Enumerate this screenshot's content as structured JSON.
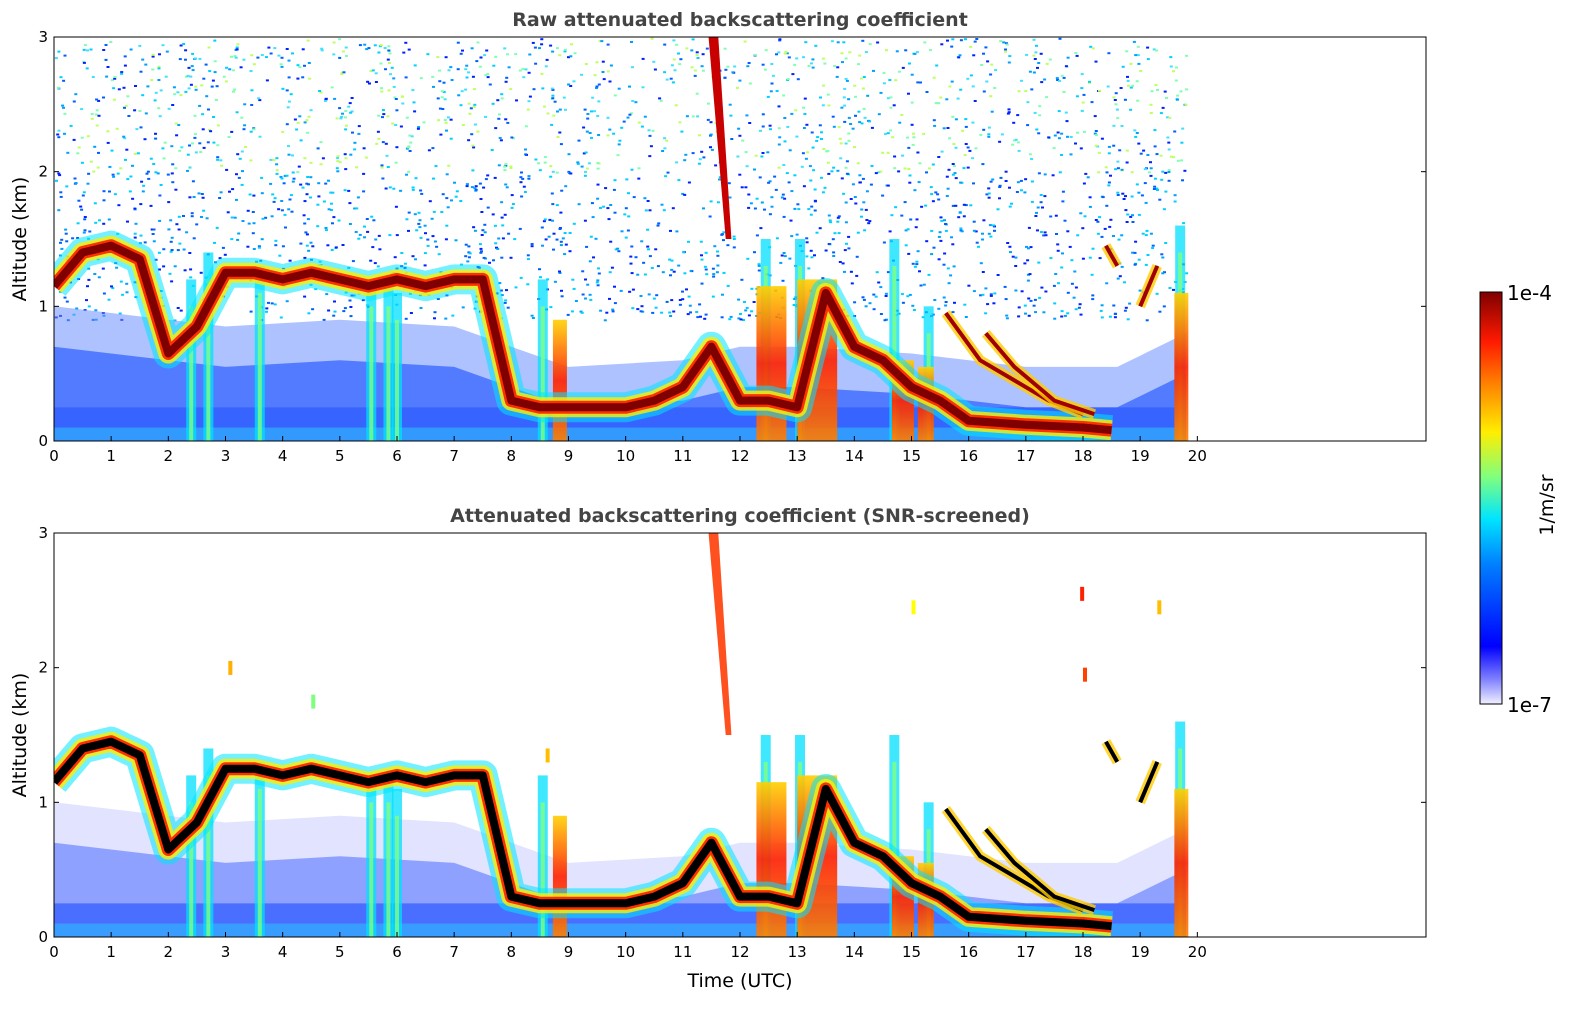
{
  "chart_data": [
    {
      "type": "heatmap",
      "title": "Raw attenuated backscattering coefficient",
      "xlabel": "",
      "ylabel": "Altitude (km)",
      "xlim": [
        0,
        24
      ],
      "ylim": [
        0,
        3
      ],
      "x_ticks": [
        "0",
        "1",
        "2",
        "3",
        "4",
        "5",
        "6",
        "7",
        "8",
        "9",
        "10",
        "11",
        "12",
        "13",
        "14",
        "15",
        "16",
        "17",
        "18",
        "19",
        "20"
      ],
      "y_ticks": [
        "0",
        "1",
        "2",
        "3"
      ],
      "data_end_time": 19.8,
      "cloud_layer_altitude_km": [
        [
          0,
          1.15
        ],
        [
          0.5,
          1.4
        ],
        [
          1,
          1.45
        ],
        [
          1.5,
          1.35
        ],
        [
          2,
          0.65
        ],
        [
          2.5,
          0.85
        ],
        [
          3,
          1.25
        ],
        [
          3.5,
          1.25
        ],
        [
          4,
          1.2
        ],
        [
          4.5,
          1.25
        ],
        [
          5,
          1.2
        ],
        [
          5.5,
          1.15
        ],
        [
          6,
          1.2
        ],
        [
          6.5,
          1.15
        ],
        [
          7,
          1.2
        ],
        [
          7.5,
          1.2
        ],
        [
          8,
          0.3
        ],
        [
          8.5,
          0.25
        ],
        [
          9,
          0.25
        ],
        [
          10,
          0.25
        ],
        [
          10.5,
          0.3
        ],
        [
          11,
          0.4
        ],
        [
          11.5,
          0.7
        ],
        [
          12,
          0.3
        ],
        [
          12.5,
          0.3
        ],
        [
          13,
          0.25
        ],
        [
          13.5,
          1.1
        ],
        [
          14,
          0.7
        ],
        [
          14.5,
          0.6
        ],
        [
          15,
          0.4
        ],
        [
          15.5,
          0.3
        ],
        [
          16,
          0.15
        ],
        [
          17,
          0.12
        ],
        [
          18,
          0.1
        ],
        [
          18.5,
          0.08
        ]
      ],
      "colorbar": "jet"
    },
    {
      "type": "heatmap",
      "title": "Attenuated backscattering coefficient (SNR-screened)",
      "xlabel": "Time (UTC)",
      "ylabel": "Altitude (km)",
      "xlim": [
        0,
        24
      ],
      "ylim": [
        0,
        3
      ],
      "x_ticks": [
        "0",
        "1",
        "2",
        "3",
        "4",
        "5",
        "6",
        "7",
        "8",
        "9",
        "10",
        "11",
        "12",
        "13",
        "14",
        "15",
        "16",
        "17",
        "18",
        "19",
        "20"
      ],
      "y_ticks": [
        "0",
        "1",
        "2",
        "3"
      ],
      "data_end_time": 19.8,
      "cloud_layer_altitude_km": [
        [
          0,
          1.15
        ],
        [
          0.5,
          1.4
        ],
        [
          1,
          1.45
        ],
        [
          1.5,
          1.35
        ],
        [
          2,
          0.65
        ],
        [
          2.5,
          0.85
        ],
        [
          3,
          1.25
        ],
        [
          3.5,
          1.25
        ],
        [
          4,
          1.2
        ],
        [
          4.5,
          1.25
        ],
        [
          5,
          1.2
        ],
        [
          5.5,
          1.15
        ],
        [
          6,
          1.2
        ],
        [
          6.5,
          1.15
        ],
        [
          7,
          1.2
        ],
        [
          7.5,
          1.2
        ],
        [
          8,
          0.3
        ],
        [
          8.5,
          0.25
        ],
        [
          9,
          0.25
        ],
        [
          10,
          0.25
        ],
        [
          10.5,
          0.3
        ],
        [
          11,
          0.4
        ],
        [
          11.5,
          0.7
        ],
        [
          12,
          0.3
        ],
        [
          12.5,
          0.3
        ],
        [
          13,
          0.25
        ],
        [
          13.5,
          1.1
        ],
        [
          14,
          0.7
        ],
        [
          14.5,
          0.6
        ],
        [
          15,
          0.4
        ],
        [
          15.5,
          0.3
        ],
        [
          16,
          0.15
        ],
        [
          17,
          0.12
        ],
        [
          18,
          0.1
        ],
        [
          18.5,
          0.08
        ]
      ],
      "colorbar": "jet"
    }
  ],
  "colorbar": {
    "label": "1/m/sr",
    "max_label": "1e-4",
    "min_label": "1e-7",
    "colors": [
      "#00007f",
      "#0000ff",
      "#007fff",
      "#00ffff",
      "#7fff7f",
      "#ffff00",
      "#ff7f00",
      "#ff0000",
      "#7f0000"
    ]
  }
}
